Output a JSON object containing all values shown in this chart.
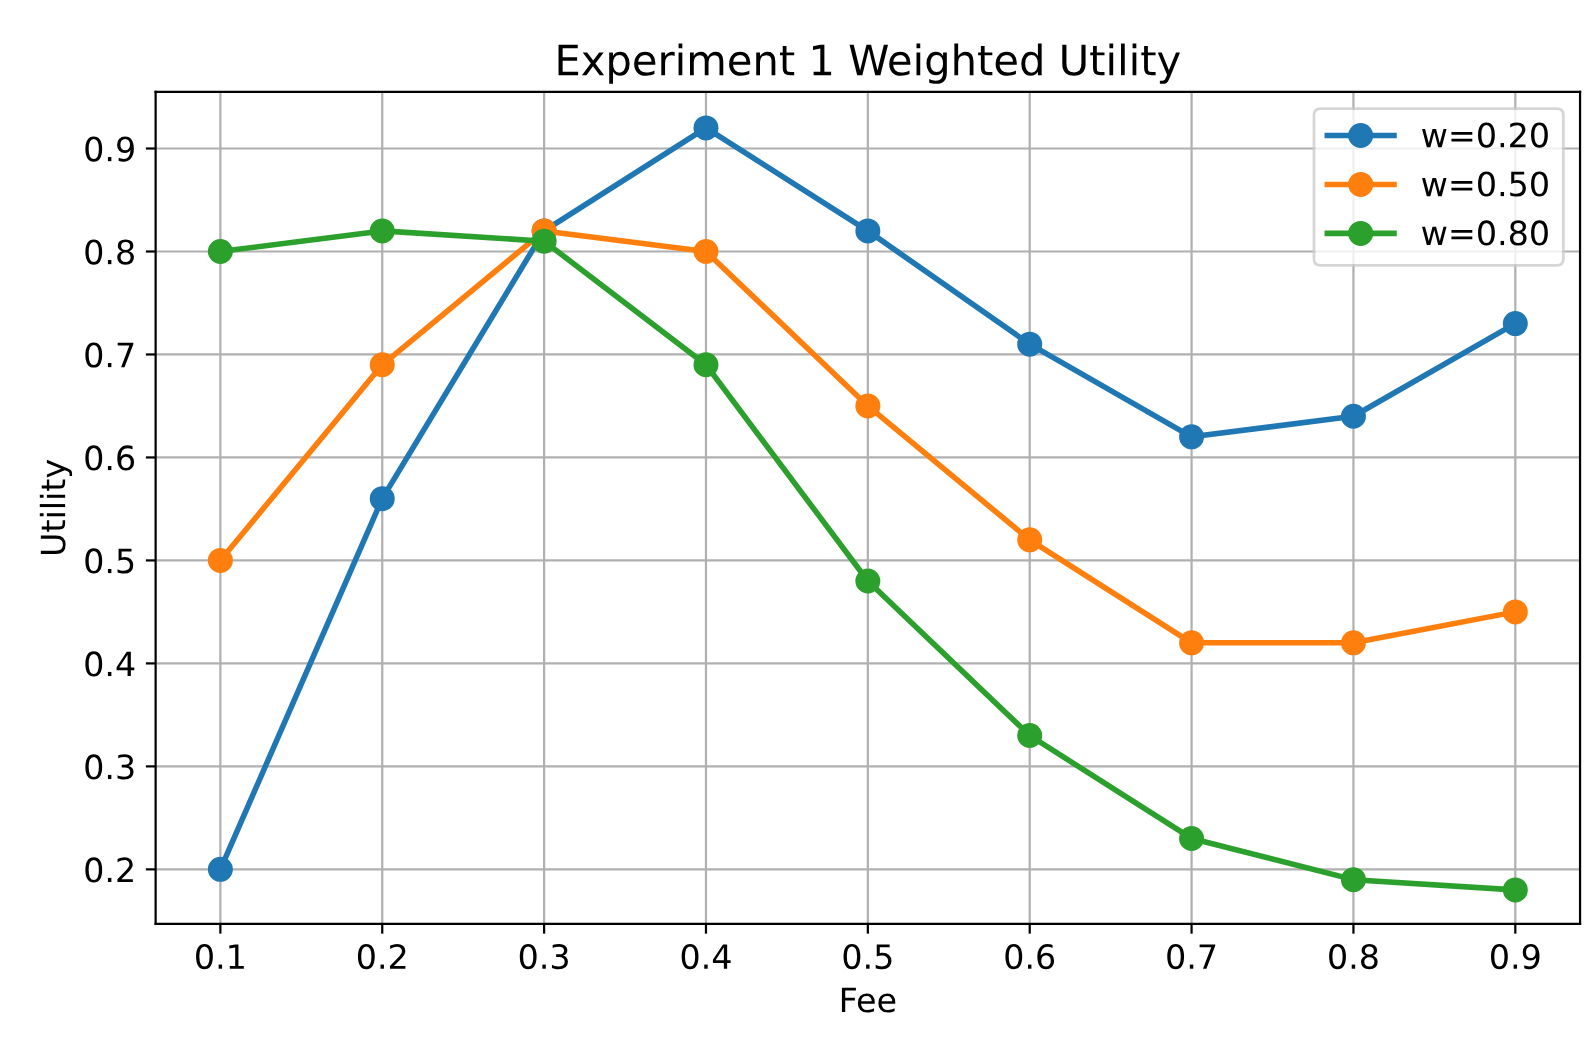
{
  "chart_data": {
    "type": "line",
    "title": "Experiment 1 Weighted Utility",
    "xlabel": "Fee",
    "ylabel": "Utility",
    "x": [
      0.1,
      0.2,
      0.3,
      0.4,
      0.5,
      0.6,
      0.7,
      0.8,
      0.9
    ],
    "series": [
      {
        "name": "w=0.20",
        "color": "#1f77b4",
        "values": [
          0.2,
          0.56,
          0.82,
          0.92,
          0.82,
          0.71,
          0.62,
          0.64,
          0.73
        ]
      },
      {
        "name": "w=0.50",
        "color": "#ff7f0e",
        "values": [
          0.5,
          0.69,
          0.82,
          0.8,
          0.65,
          0.52,
          0.42,
          0.42,
          0.45
        ]
      },
      {
        "name": "w=0.80",
        "color": "#2ca02c",
        "values": [
          0.8,
          0.82,
          0.81,
          0.69,
          0.48,
          0.33,
          0.23,
          0.19,
          0.18
        ]
      }
    ],
    "xlim": [
      0.06,
      0.94
    ],
    "xticks": [
      0.1,
      0.2,
      0.3,
      0.4,
      0.5,
      0.6,
      0.7,
      0.8,
      0.9
    ],
    "ylim": [
      0.147,
      0.955
    ],
    "yticks": [
      0.2,
      0.3,
      0.4,
      0.5,
      0.6,
      0.7,
      0.8,
      0.9
    ],
    "grid": true,
    "legend": "top right",
    "marker": "circle",
    "line_style": "solid"
  }
}
